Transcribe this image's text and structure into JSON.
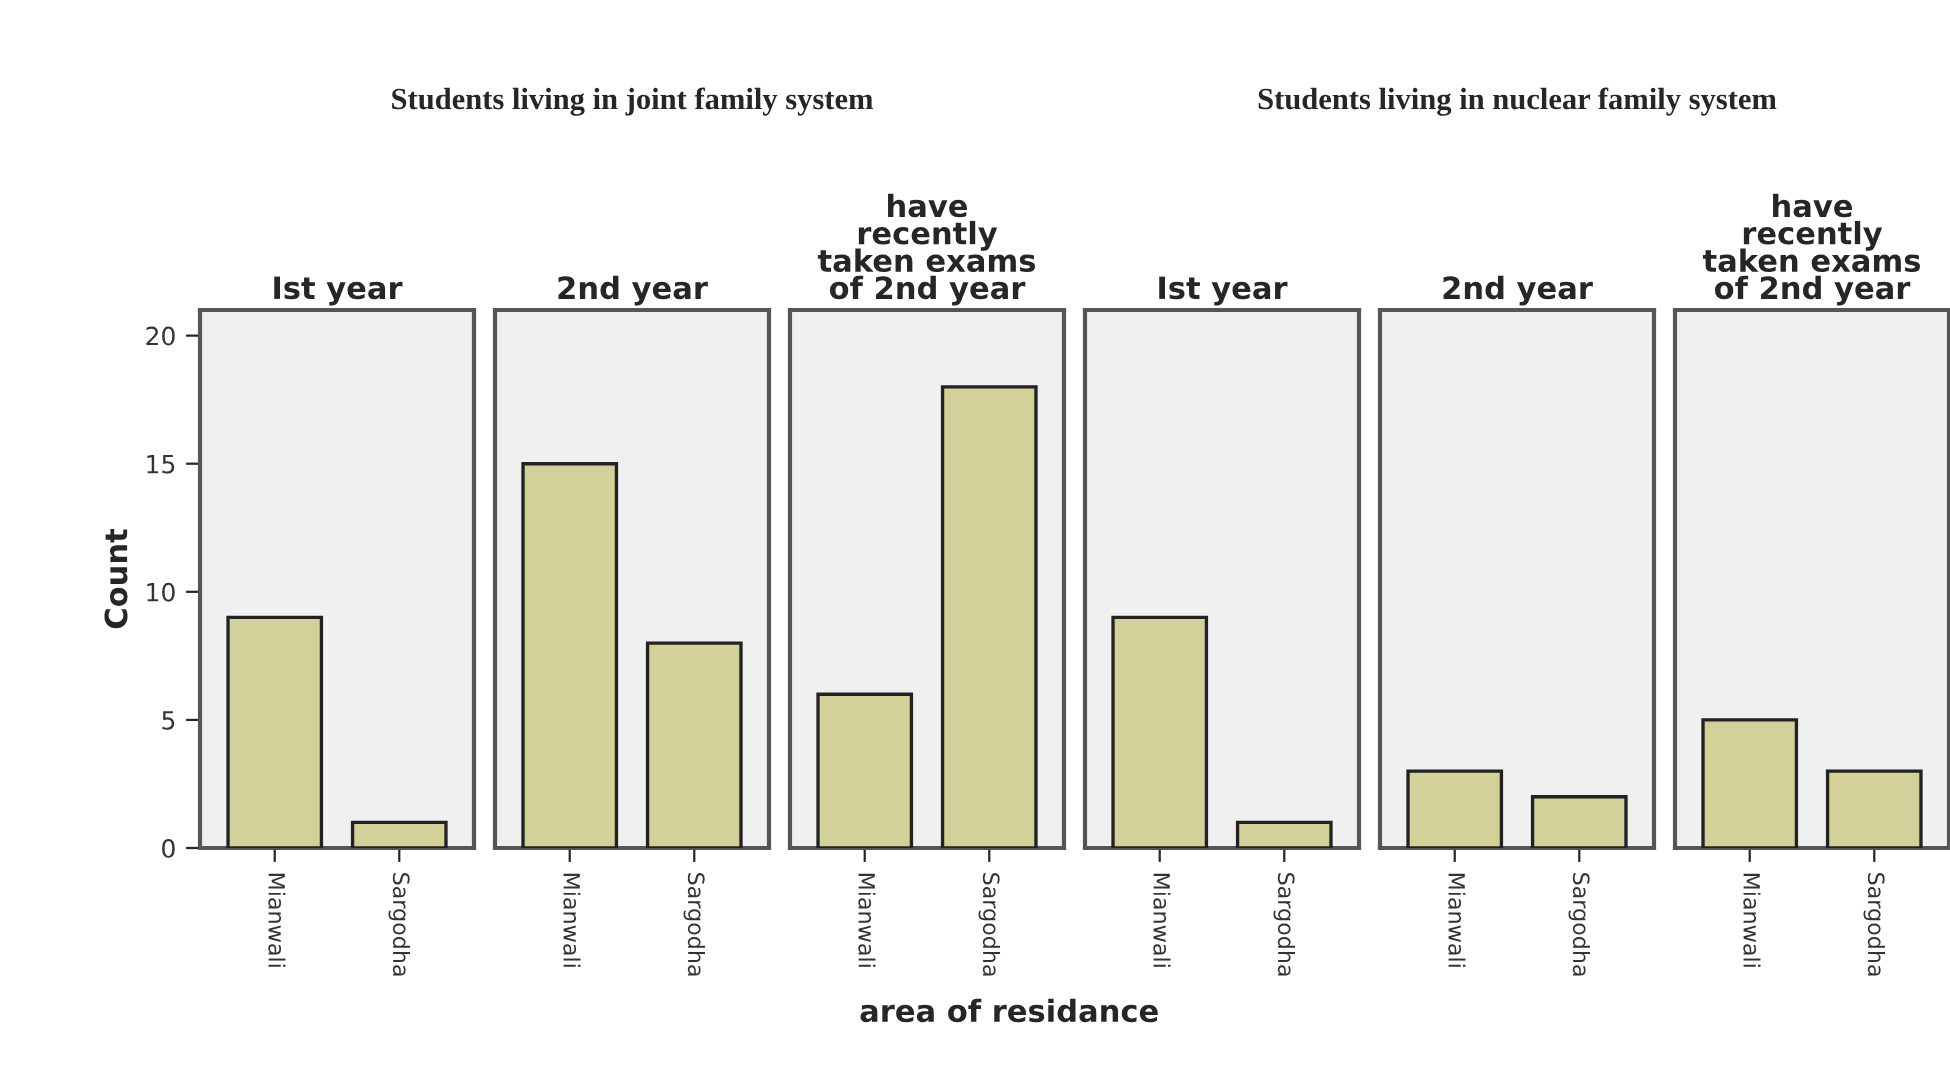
{
  "chart_data": [
    {
      "type": "bar",
      "title": "Ist year",
      "annotations": [
        "Students living in joint family system"
      ],
      "ylabel": "Count",
      "categories": [
        "Mianwali",
        "Sargodha"
      ],
      "values": [
        9,
        1
      ],
      "color": "#d4d09a",
      "ylim": [
        0,
        21
      ],
      "yticks": [
        0,
        5,
        10,
        15,
        20
      ],
      "grid": false
    },
    {
      "type": "bar",
      "title": "2nd year",
      "categories": [
        "Mianwali",
        "Sargodha"
      ],
      "values": [
        15,
        8
      ],
      "color": "#d4d09a",
      "ylim": [
        0,
        21
      ],
      "yticks": [
        0,
        5,
        10,
        15,
        20
      ],
      "tick_labels": "x",
      "grid": false
    },
    {
      "type": "bar",
      "title": "have\nrecently\ntaken exams\nof 2nd year",
      "xlabel": "area of residance",
      "categories": [
        "Mianwali",
        "Sargodha"
      ],
      "values": [
        6,
        18
      ],
      "color": "#d4d09a",
      "ylim": [
        0,
        21
      ],
      "yticks": [
        0,
        5,
        10,
        15,
        20
      ],
      "tick_labels": "x",
      "grid": false
    },
    {
      "type": "bar",
      "title": "Ist year",
      "annotations": [
        "Students living in nuclear family system"
      ],
      "categories": [
        "Mianwali",
        "Sargodha"
      ],
      "values": [
        9,
        1
      ],
      "color": "#d4d09a",
      "ylim": [
        0,
        21
      ],
      "yticks": [
        0,
        5,
        10,
        15,
        20
      ],
      "tick_labels": "x",
      "grid": false
    },
    {
      "type": "bar",
      "title": "2nd year",
      "categories": [
        "Mianwali",
        "Sargodha"
      ],
      "values": [
        3,
        2
      ],
      "color": "#d4d09a",
      "ylim": [
        0,
        21
      ],
      "yticks": [
        0,
        5,
        10,
        15,
        20
      ],
      "tick_labels": "x",
      "grid": false
    },
    {
      "type": "bar",
      "title": "have\nrecently\ntaken exams\nof 2nd year",
      "categories": [
        "Mianwali",
        "Sargodha"
      ],
      "values": [
        5,
        3
      ],
      "color": "#d4d09a",
      "ylim": [
        0,
        21
      ],
      "yticks": [
        0,
        5,
        10,
        15,
        20
      ],
      "tick_labels": "x",
      "grid": false
    }
  ]
}
